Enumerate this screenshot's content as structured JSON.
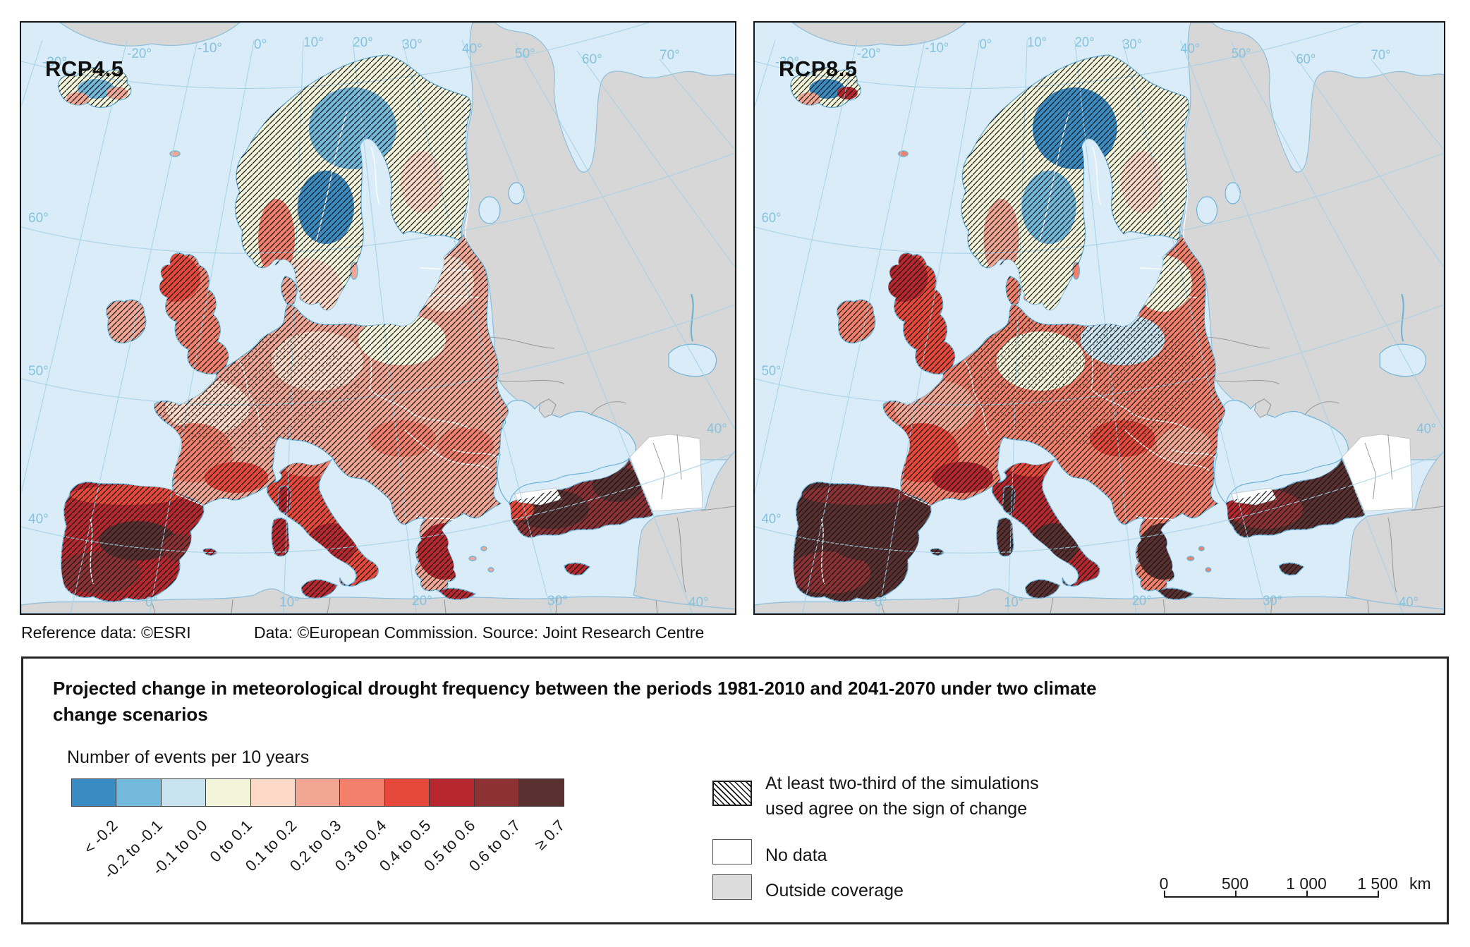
{
  "maps": [
    {
      "label": "RCP4.5",
      "region_fills": {
        "iceland": "#f3f5da",
        "ireland": "#f2a795",
        "gb": "#f3806b",
        "scandinavia": "#f3f5da",
        "denmark": "#f2a795",
        "continent": "#f2a795",
        "iberia": "#b6272e",
        "italy": "#e6483a",
        "islands": "#b6272e",
        "turkey": "#8c3134"
      },
      "patches": {
        "iberia": [
          "#8c3134",
          "#592f2f",
          "#e6483a",
          "#8c3134"
        ],
        "continent": [
          "#fcd9c6",
          "#f3806b",
          "#e6483a",
          "#fcd9c6",
          "#f3f5da",
          "#fcd9c6",
          "#f3806b",
          "#f3806b",
          "#b6272e"
        ],
        "italy": [
          "#b6272e",
          "#f3806b"
        ],
        "turkey": [
          "#592f2f",
          "#592f2f",
          "#e6483a"
        ],
        "scandinavia": [
          "#72b9dc",
          "#3a8bc2",
          "#fcd9c6",
          "#f3806b",
          "#fcd9c6"
        ],
        "gb": [
          "#e6483a"
        ],
        "iceland": [
          "#72b9dc",
          "#f2a795",
          "#f2a795"
        ]
      }
    },
    {
      "label": "RCP8.5",
      "region_fills": {
        "iceland": "#f3f5da",
        "ireland": "#f3806b",
        "gb": "#e6483a",
        "scandinavia": "#f3f5da",
        "denmark": "#f3806b",
        "continent": "#f3806b",
        "iberia": "#592f2f",
        "italy": "#b6272e",
        "islands": "#592f2f",
        "turkey": "#592f2f"
      },
      "patches": {
        "iberia": [
          "#8c3134",
          "#592f2f",
          "#8c3134",
          "#592f2f"
        ],
        "continent": [
          "#f2a795",
          "#e6483a",
          "#b6272e",
          "#f3f5da",
          "#c9e4f0",
          "#f3f5da",
          "#e6483a",
          "#f2a795",
          "#592f2f"
        ],
        "italy": [
          "#592f2f",
          "#e6483a"
        ],
        "turkey": [
          "#8c3134",
          "#592f2f",
          "#b6272e"
        ],
        "scandinavia": [
          "#3a8bc2",
          "#72b9dc",
          "#f3f5da",
          "#f2a795",
          "#fcd9c6"
        ],
        "gb": [
          "#b6272e"
        ],
        "iceland": [
          "#3a8bc2",
          "#f2a795",
          "#b6272e"
        ]
      }
    }
  ],
  "graticule_labels": {
    "top": [
      "-30°",
      "-20°",
      "-10°",
      "0°",
      "10°",
      "20°",
      "30°",
      "40°",
      "50°",
      "60°",
      "70°"
    ],
    "left": [
      "60°",
      "50°",
      "40°"
    ],
    "bottom": [
      "0°",
      "10°",
      "20°",
      "30°",
      "40°"
    ],
    "right": [
      "40°"
    ]
  },
  "credits": {
    "reference": "Reference data: ©ESRI",
    "data": "Data: ©European Commission. Source: Joint Research Centre"
  },
  "legend": {
    "title": "Projected change in meteorological drought frequency between the periods 1981-2010 and 2041-2070 under two climate change scenarios",
    "scale_caption": "Number of events per 10 years",
    "classes": [
      {
        "label": "< -0.2",
        "color": "#3a8bc2"
      },
      {
        "label": "-0.2 to -0.1",
        "color": "#72b9dc"
      },
      {
        "label": "-0.1 to 0.0",
        "color": "#c9e4f0"
      },
      {
        "label": "0 to 0.1",
        "color": "#f3f5da"
      },
      {
        "label": "0.1 to 0.2",
        "color": "#fcd9c6"
      },
      {
        "label": "0.2 to 0.3",
        "color": "#f2a795"
      },
      {
        "label": "0.3 to 0.4",
        "color": "#f3806b"
      },
      {
        "label": "0.4 to 0.5",
        "color": "#e6483a"
      },
      {
        "label": "0.5 to 0.6",
        "color": "#b6272e"
      },
      {
        "label": "0.6 to 0.7",
        "color": "#8c3134"
      },
      {
        "label": "≥ 0.7",
        "color": "#592f2f"
      }
    ],
    "agreement_line1": "At least two-third of the simulations",
    "agreement_line2": "used agree on the sign of change",
    "no_data": "No data",
    "outside_coverage": "Outside coverage",
    "scalebar": {
      "ticks": [
        "0",
        "500",
        "1 000",
        "1 500"
      ],
      "unit": "km"
    }
  },
  "colors": {
    "sea": "#d9ecf8",
    "outside_land": "#d7d7d7",
    "graticule_line": "#a5d2e8",
    "graticule_label": "#85c2de",
    "coast": "#6fb3d9",
    "gray_coast": "#8fbeda",
    "gray_border": "#9a9a9a",
    "white_area": "#ffffff"
  }
}
